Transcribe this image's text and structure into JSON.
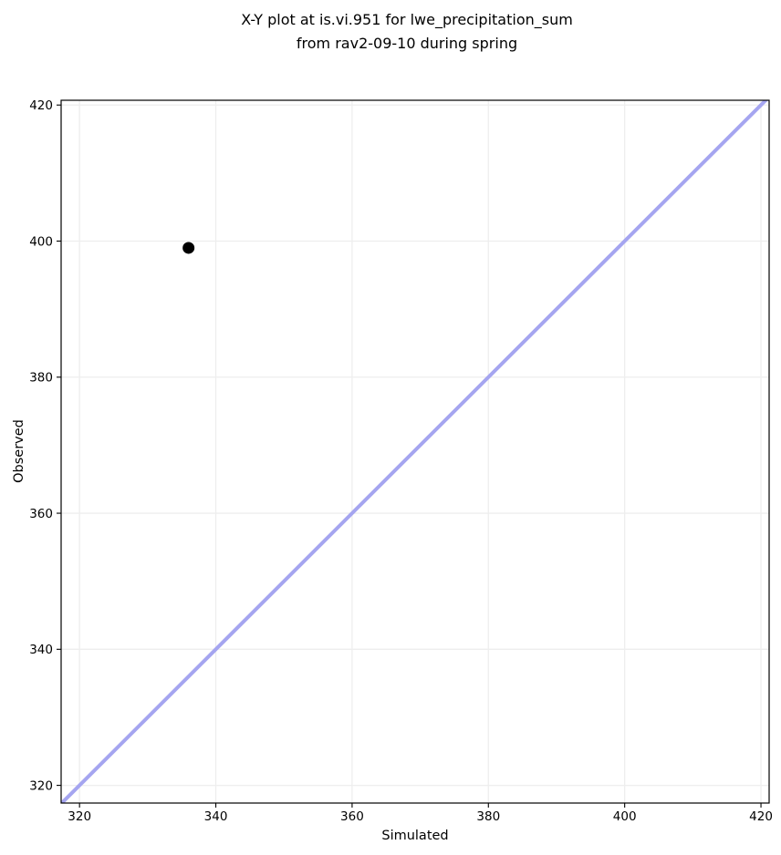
{
  "chart_data": {
    "type": "scatter",
    "title": "X-Y plot at is.vi.951 for lwe_precipitation_sum from rav2-09-10 during spring",
    "title_lines": [
      "X-Y plot at is.vi.951 for lwe_precipitation_sum",
      "from rav2-09-10 during spring"
    ],
    "xlabel": "Simulated",
    "ylabel": "Observed",
    "xlim": [
      317.3,
      421.2
    ],
    "ylim": [
      317.4,
      420.7
    ],
    "xticks": [
      320,
      340,
      360,
      380,
      400,
      420
    ],
    "yticks": [
      320,
      340,
      360,
      380,
      400,
      420
    ],
    "grid": true,
    "legend": "none",
    "series": [
      {
        "name": "observed-vs-simulated-points",
        "marker": "circle",
        "points": [
          {
            "x": 336,
            "y": 399
          }
        ]
      }
    ],
    "identity_line": {
      "from": 317.3,
      "to": 421.2,
      "style": "solid"
    },
    "marker": {
      "radius_px": 6.5
    },
    "colors": {
      "marker": "#000000",
      "identity_line": "#a5a5f0",
      "grid": "#eeeeee",
      "spine": "#000000",
      "tick": "#000000",
      "background": "#ffffff"
    }
  }
}
